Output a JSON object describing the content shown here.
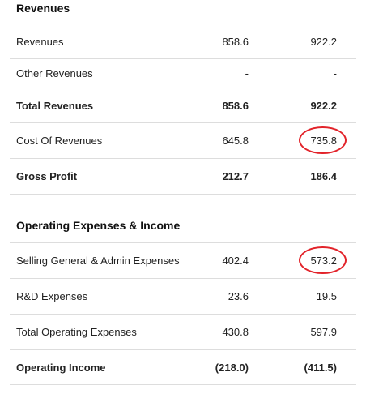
{
  "sections": [
    {
      "title": "Revenues",
      "rows": [
        {
          "label": "Revenues",
          "v1": "858.6",
          "v2": "922.2"
        },
        {
          "label": "Other Revenues",
          "v1": "-",
          "v2": "-"
        },
        {
          "label": "Total Revenues",
          "v1": "858.6",
          "v2": "922.2"
        },
        {
          "label": "Cost Of Revenues",
          "v1": "645.8",
          "v2": "735.8"
        },
        {
          "label": "Gross Profit",
          "v1": "212.7",
          "v2": "186.4"
        }
      ]
    },
    {
      "title": "Operating Expenses & Income",
      "rows": [
        {
          "label": "Selling General & Admin Expenses",
          "v1": "402.4",
          "v2": "573.2"
        },
        {
          "label": "R&D Expenses",
          "v1": "23.6",
          "v2": "19.5"
        },
        {
          "label": "Total Operating Expenses",
          "v1": "430.8",
          "v2": "597.9"
        },
        {
          "label": "Operating Income",
          "v1": "(218.0)",
          "v2": "(411.5)"
        }
      ]
    }
  ],
  "annotations": {
    "circle_color": "#e2232a"
  }
}
